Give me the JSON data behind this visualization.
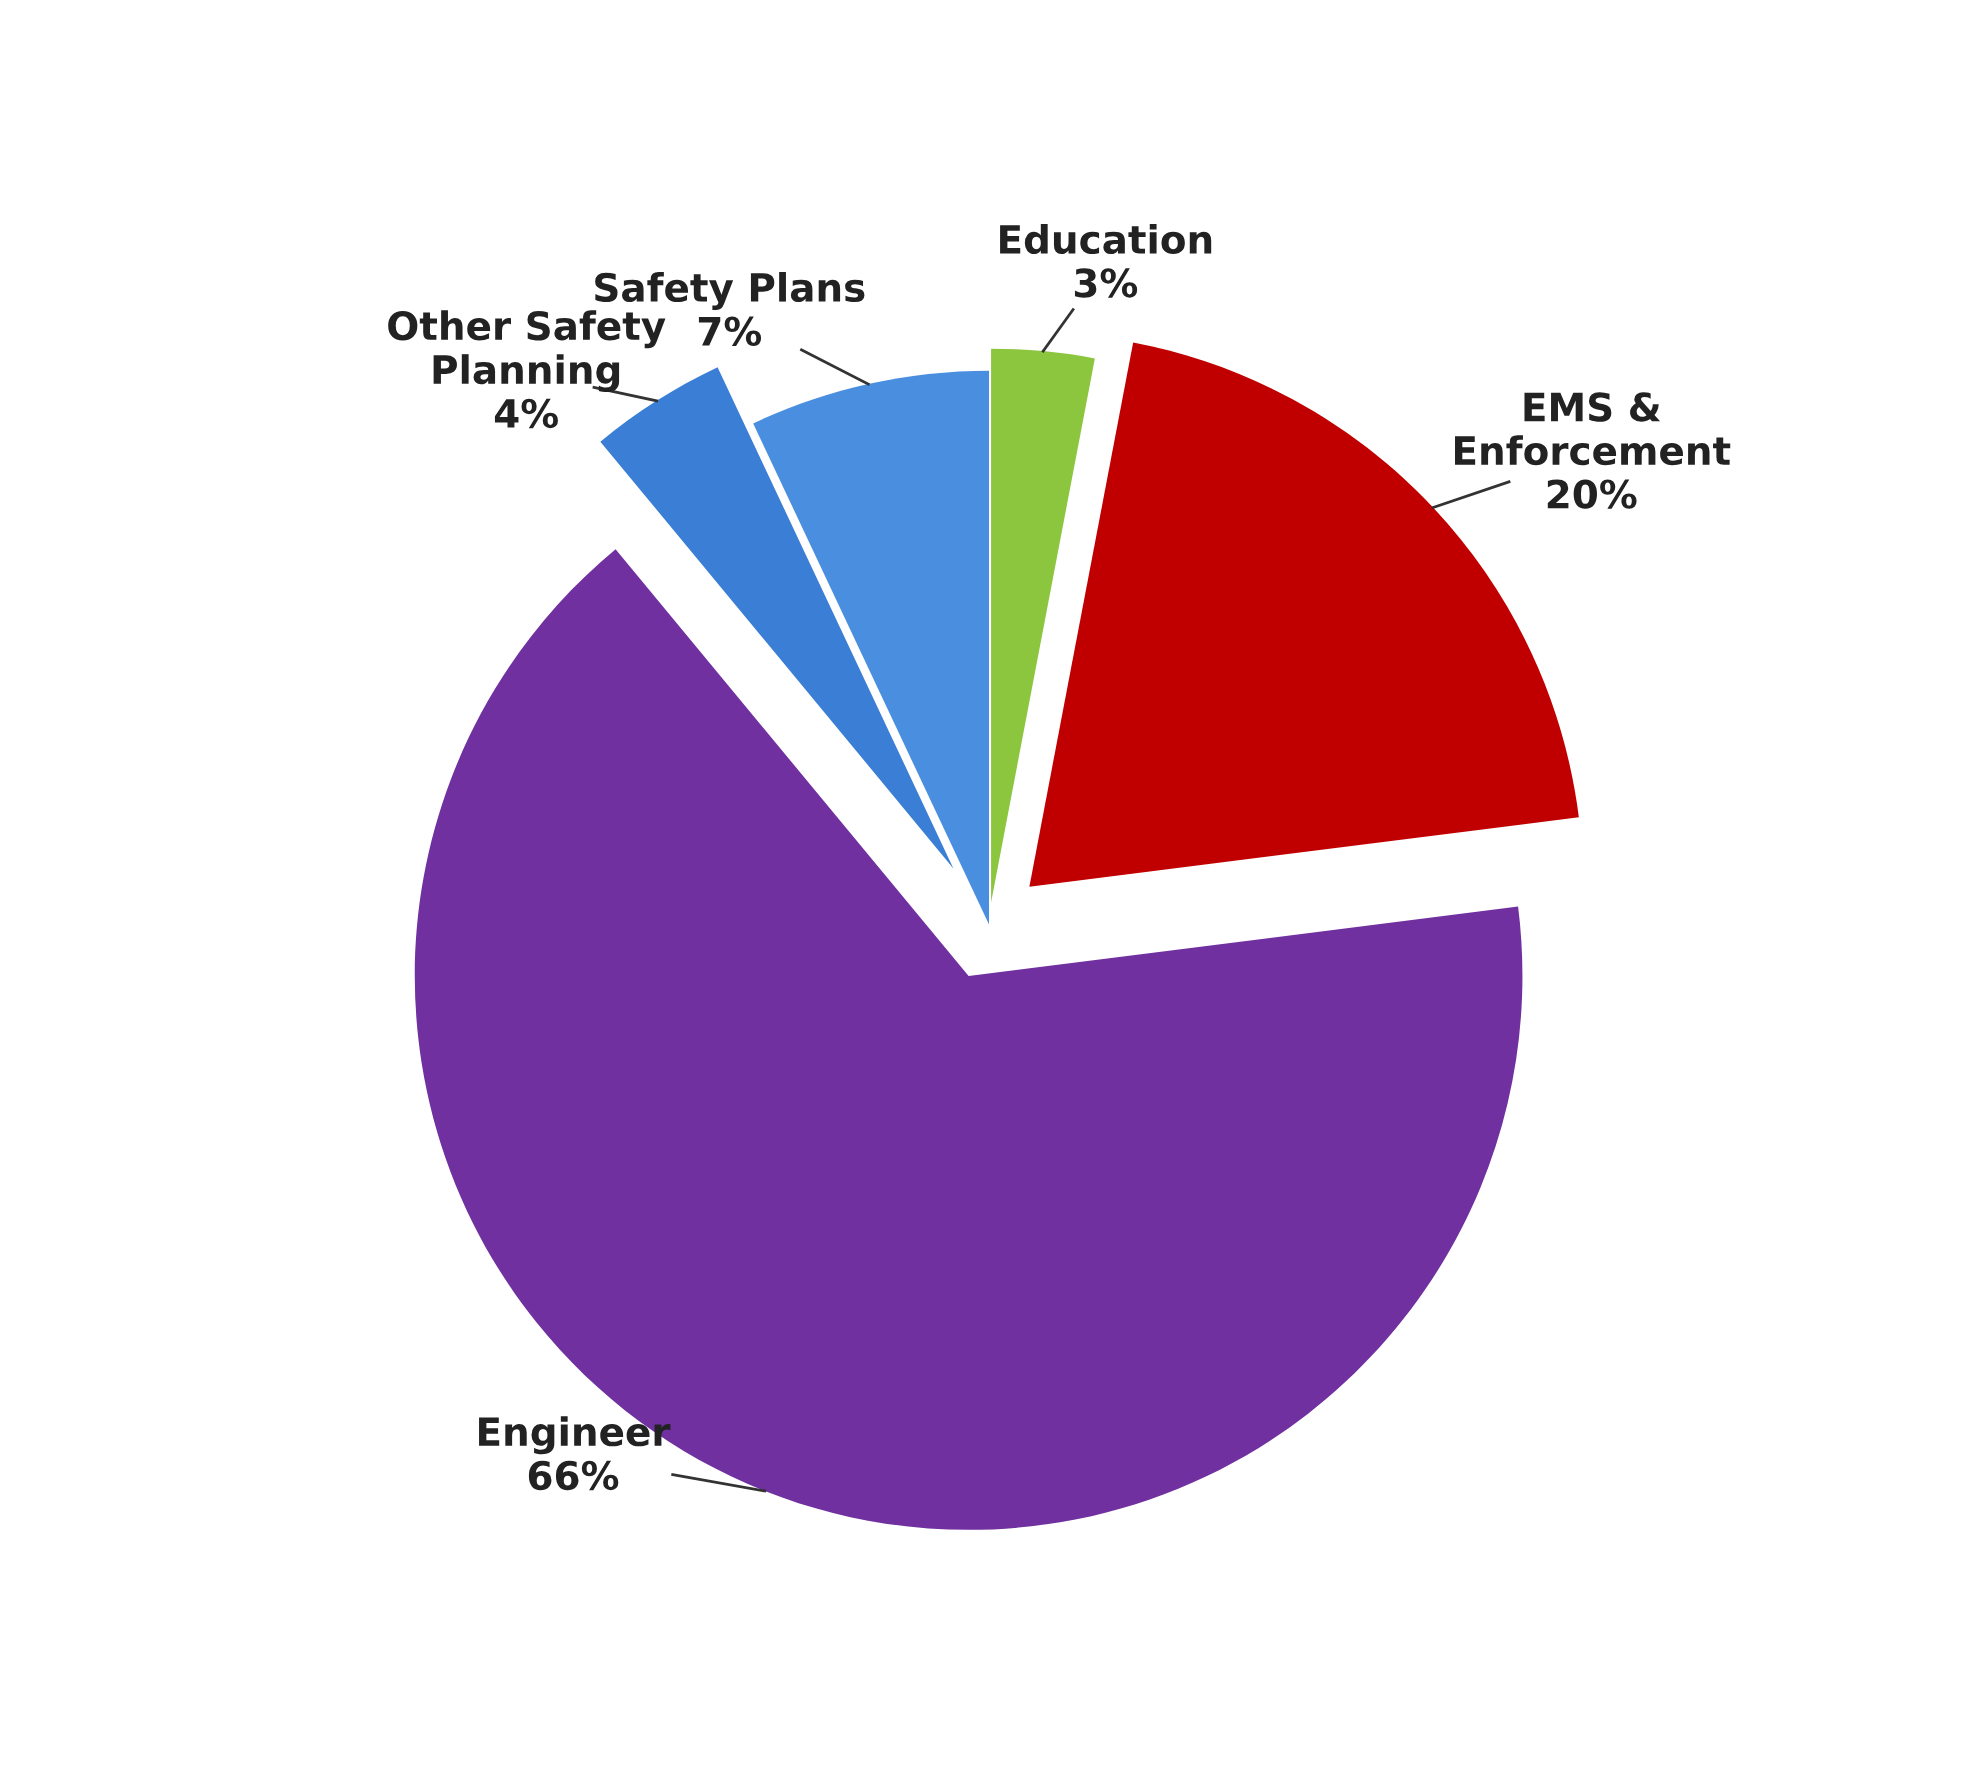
{
  "chart_data": {
    "type": "pie",
    "categories": [
      "Education",
      "EMS & Enforcement",
      "Engineer",
      "Other Safety Planning",
      "Safety Plans"
    ],
    "values": [
      3,
      20,
      66,
      4,
      7
    ],
    "value_labels": [
      "3%",
      "20%",
      "66%",
      "4%",
      "7%"
    ],
    "colors": [
      "#8cc63e",
      "#c00000",
      "#7030a0",
      "#3a7fd5",
      "#4a8fdf"
    ],
    "legend": false
  }
}
